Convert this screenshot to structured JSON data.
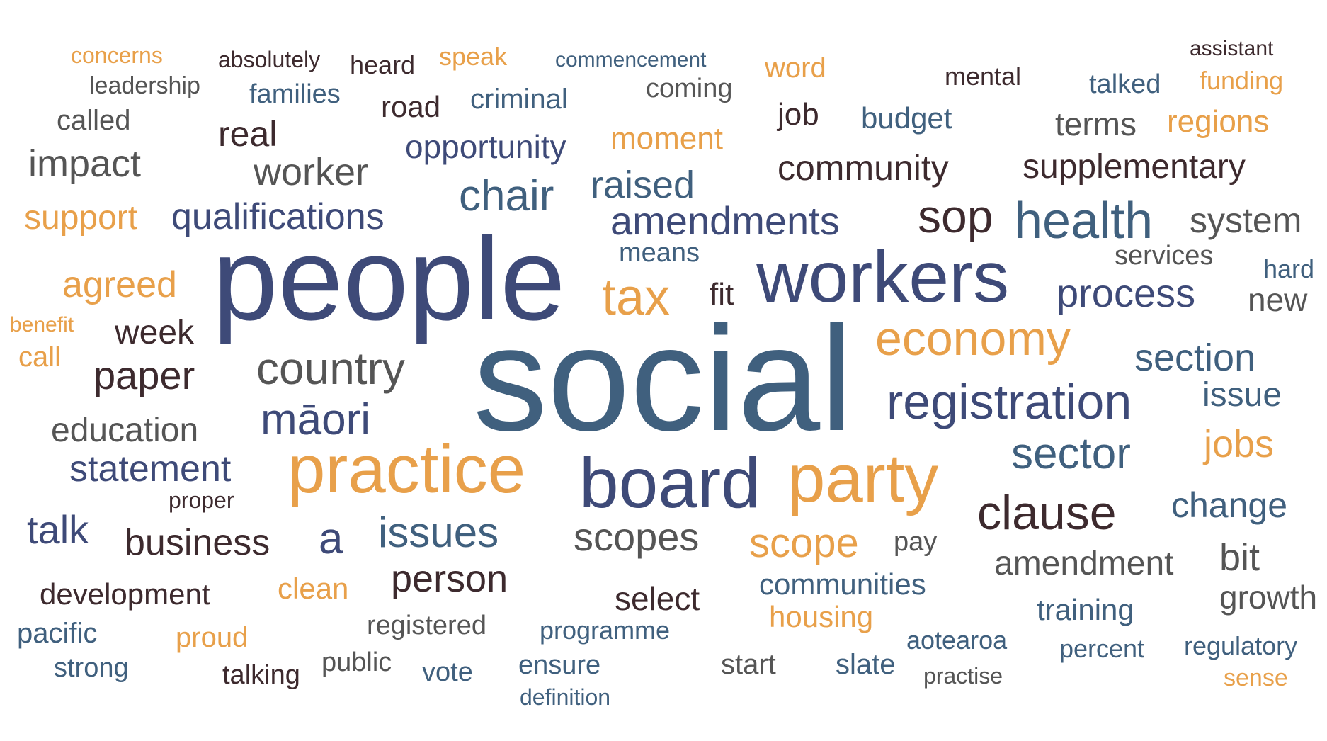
{
  "palette": {
    "orange": "#E8A04A",
    "navy": "#3E4A78",
    "slate": "#40607E",
    "plum": "#3D2A2E",
    "gray": "#555555"
  },
  "words": [
    {
      "text": "social",
      "color": "slate"
    },
    {
      "text": "people",
      "color": "navy"
    },
    {
      "text": "workers",
      "color": "navy"
    },
    {
      "text": "practice",
      "color": "orange"
    },
    {
      "text": "party",
      "color": "orange"
    },
    {
      "text": "board",
      "color": "navy"
    },
    {
      "text": "registration",
      "color": "navy"
    },
    {
      "text": "economy",
      "color": "orange"
    },
    {
      "text": "tax",
      "color": "orange"
    },
    {
      "text": "health",
      "color": "slate"
    },
    {
      "text": "clause",
      "color": "plum"
    },
    {
      "text": "sop",
      "color": "plum"
    },
    {
      "text": "chair",
      "color": "slate"
    },
    {
      "text": "amendments",
      "color": "navy"
    },
    {
      "text": "country",
      "color": "gray"
    },
    {
      "text": "māori",
      "color": "navy"
    },
    {
      "text": "sector",
      "color": "slate"
    },
    {
      "text": "process",
      "color": "navy"
    },
    {
      "text": "scopes",
      "color": "gray"
    },
    {
      "text": "scope",
      "color": "orange"
    },
    {
      "text": "issues",
      "color": "slate"
    },
    {
      "text": "raised",
      "color": "slate"
    },
    {
      "text": "community",
      "color": "plum"
    },
    {
      "text": "supplementary",
      "color": "plum"
    },
    {
      "text": "system",
      "color": "gray"
    },
    {
      "text": "section",
      "color": "slate"
    },
    {
      "text": "qualifications",
      "color": "navy"
    },
    {
      "text": "worker",
      "color": "gray"
    },
    {
      "text": "impact",
      "color": "gray"
    },
    {
      "text": "agreed",
      "color": "orange"
    },
    {
      "text": "support",
      "color": "orange"
    },
    {
      "text": "paper",
      "color": "plum"
    },
    {
      "text": "statement",
      "color": "navy"
    },
    {
      "text": "business",
      "color": "plum"
    },
    {
      "text": "person",
      "color": "plum"
    },
    {
      "text": "a",
      "color": "navy"
    },
    {
      "text": "change",
      "color": "slate"
    },
    {
      "text": "amendment",
      "color": "gray"
    },
    {
      "text": "jobs",
      "color": "orange"
    },
    {
      "text": "issue",
      "color": "slate"
    },
    {
      "text": "bit",
      "color": "gray"
    },
    {
      "text": "opportunity",
      "color": "navy"
    },
    {
      "text": "moment",
      "color": "orange"
    },
    {
      "text": "education",
      "color": "gray"
    },
    {
      "text": "week",
      "color": "plum"
    },
    {
      "text": "talk",
      "color": "navy"
    },
    {
      "text": "real",
      "color": "plum"
    },
    {
      "text": "new",
      "color": "gray"
    },
    {
      "text": "terms",
      "color": "gray"
    },
    {
      "text": "regions",
      "color": "orange"
    },
    {
      "text": "budget",
      "color": "slate"
    },
    {
      "text": "road",
      "color": "plum"
    },
    {
      "text": "development",
      "color": "plum"
    },
    {
      "text": "select",
      "color": "plum"
    },
    {
      "text": "communities",
      "color": "slate"
    },
    {
      "text": "training",
      "color": "slate"
    },
    {
      "text": "growth",
      "color": "gray"
    },
    {
      "text": "housing",
      "color": "orange"
    },
    {
      "text": "clean",
      "color": "orange"
    },
    {
      "text": "called",
      "color": "gray"
    },
    {
      "text": "job",
      "color": "plum"
    },
    {
      "text": "pacific",
      "color": "slate"
    },
    {
      "text": "proud",
      "color": "orange"
    },
    {
      "text": "fit",
      "color": "plum"
    },
    {
      "text": "pay",
      "color": "gray"
    },
    {
      "text": "services",
      "color": "gray"
    },
    {
      "text": "means",
      "color": "slate"
    },
    {
      "text": "registered",
      "color": "gray"
    },
    {
      "text": "programme",
      "color": "slate"
    },
    {
      "text": "criminal",
      "color": "slate"
    },
    {
      "text": "families",
      "color": "slate"
    },
    {
      "text": "coming",
      "color": "gray"
    },
    {
      "text": "word",
      "color": "orange"
    },
    {
      "text": "talked",
      "color": "slate"
    },
    {
      "text": "funding",
      "color": "orange"
    },
    {
      "text": "hard",
      "color": "slate"
    },
    {
      "text": "start",
      "color": "gray"
    },
    {
      "text": "slate",
      "color": "slate"
    },
    {
      "text": "aotearoa",
      "color": "slate"
    },
    {
      "text": "percent",
      "color": "slate"
    },
    {
      "text": "regulatory",
      "color": "slate"
    },
    {
      "text": "strong",
      "color": "slate"
    },
    {
      "text": "talking",
      "color": "plum"
    },
    {
      "text": "public",
      "color": "gray"
    },
    {
      "text": "vote",
      "color": "slate"
    },
    {
      "text": "ensure",
      "color": "slate"
    },
    {
      "text": "heard",
      "color": "plum"
    },
    {
      "text": "speak",
      "color": "orange"
    },
    {
      "text": "mental",
      "color": "plum"
    },
    {
      "text": "leadership",
      "color": "gray"
    },
    {
      "text": "concerns",
      "color": "orange"
    },
    {
      "text": "absolutely",
      "color": "plum"
    },
    {
      "text": "commencement",
      "color": "slate"
    },
    {
      "text": "assistant",
      "color": "plum"
    },
    {
      "text": "call",
      "color": "orange"
    },
    {
      "text": "benefit",
      "color": "orange"
    },
    {
      "text": "proper",
      "color": "plum"
    },
    {
      "text": "practise",
      "color": "gray"
    },
    {
      "text": "sense",
      "color": "orange"
    },
    {
      "text": "definition",
      "color": "slate"
    }
  ]
}
